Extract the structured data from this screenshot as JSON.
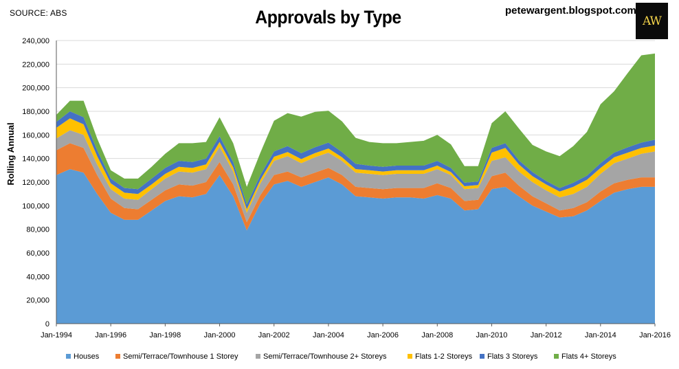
{
  "header": {
    "source": "SOURCE: ABS",
    "title": "Approvals by Type",
    "blog": "petewargent.blogspot.com",
    "logo_text": "AW"
  },
  "colors": {
    "Houses": "#5b9bd5",
    "Semi1": "#ed7d31",
    "Semi2": "#a5a5a5",
    "Flats12": "#ffc000",
    "Flats3": "#4472c4",
    "Flats4": "#70ad47"
  },
  "chart_data": {
    "type": "area",
    "stacked": true,
    "title": "Approvals by Type",
    "xlabel": "",
    "ylabel": "Rolling Annual",
    "ylim": [
      0,
      240000
    ],
    "yticks": [
      0,
      20000,
      40000,
      60000,
      80000,
      100000,
      120000,
      140000,
      160000,
      180000,
      200000,
      220000,
      240000
    ],
    "ytick_labels": [
      "0",
      "20,000",
      "40,000",
      "60,000",
      "80,000",
      "100,000",
      "120,000",
      "140,000",
      "160,000",
      "180,000",
      "200,000",
      "220,000",
      "240,000"
    ],
    "xtick_labels": [
      "Jan-1994",
      "Jan-1996",
      "Jan-1998",
      "Jan-2000",
      "Jan-2002",
      "Jan-2004",
      "Jan-2006",
      "Jan-2008",
      "Jan-2010",
      "Jan-2012",
      "Jan-2014",
      "Jan-2016"
    ],
    "x": [
      1994.0,
      1994.5,
      1995.0,
      1995.5,
      1996.0,
      1996.5,
      1997.0,
      1997.5,
      1998.0,
      1998.5,
      1999.0,
      1999.5,
      2000.0,
      2000.5,
      2001.0,
      2001.5,
      2002.0,
      2002.5,
      2003.0,
      2003.5,
      2004.0,
      2004.5,
      2005.0,
      2005.5,
      2006.0,
      2006.5,
      2007.0,
      2007.5,
      2008.0,
      2008.5,
      2009.0,
      2009.5,
      2010.0,
      2010.5,
      2011.0,
      2011.5,
      2012.0,
      2012.5,
      2013.0,
      2013.5,
      2014.0,
      2014.5,
      2015.0,
      2015.5,
      2016.0
    ],
    "series": [
      {
        "name": "Houses",
        "color": "#5b9bd5",
        "values": [
          126000,
          131000,
          128000,
          110000,
          94000,
          88000,
          88000,
          96000,
          104000,
          108000,
          107000,
          110000,
          126000,
          108000,
          79000,
          102000,
          118000,
          121000,
          116000,
          120000,
          124000,
          118000,
          108000,
          107000,
          106000,
          107000,
          107000,
          106000,
          109000,
          106000,
          96000,
          97000,
          114000,
          116000,
          108000,
          100000,
          95000,
          90000,
          91000,
          96000,
          104000,
          111000,
          114000,
          116000,
          116000
        ]
      },
      {
        "name": "Semi/Terrace/Townhouse 1 Storey",
        "color": "#ed7d31",
        "values": [
          21000,
          22000,
          21000,
          16000,
          12000,
          10000,
          9000,
          9000,
          9000,
          10000,
          10000,
          10000,
          11000,
          10000,
          7000,
          7000,
          8000,
          8000,
          8000,
          8000,
          8000,
          8000,
          8000,
          8000,
          8000,
          8000,
          8000,
          9000,
          10000,
          9000,
          8000,
          8000,
          11000,
          12000,
          9000,
          8000,
          7000,
          6000,
          7000,
          7000,
          8000,
          8000,
          8000,
          8000,
          8000
        ]
      },
      {
        "name": "Semi/Terrace/Townhouse 2+ Storeys",
        "color": "#a5a5a5",
        "values": [
          10000,
          11000,
          11000,
          9000,
          8000,
          8000,
          8000,
          9000,
          10000,
          11000,
          11000,
          11000,
          13000,
          11000,
          8000,
          10000,
          12000,
          13000,
          12000,
          13000,
          13000,
          12000,
          12000,
          12000,
          12000,
          12000,
          12000,
          12000,
          12000,
          11000,
          10000,
          10000,
          13000,
          13000,
          12000,
          12000,
          11000,
          11000,
          12000,
          13000,
          15000,
          17000,
          18000,
          20000,
          22000
        ]
      },
      {
        "name": "Flats 1-2 Storeys",
        "color": "#ffc000",
        "values": [
          9000,
          10000,
          9000,
          7000,
          5000,
          5000,
          5000,
          4000,
          4000,
          4000,
          4000,
          4000,
          4000,
          3500,
          3000,
          3000,
          3500,
          3500,
          3500,
          3500,
          3500,
          3000,
          3000,
          3000,
          3000,
          3000,
          3000,
          3000,
          3000,
          2500,
          2500,
          2500,
          7000,
          8000,
          6000,
          5000,
          5000,
          5000,
          6000,
          6000,
          5000,
          5000,
          5000,
          5000,
          5000
        ]
      },
      {
        "name": "Flats 3 Storeys",
        "color": "#4472c4",
        "values": [
          5000,
          6000,
          6000,
          5000,
          4000,
          4000,
          4000,
          5000,
          5000,
          5000,
          5000,
          5000,
          5000,
          4500,
          4000,
          4000,
          4500,
          5000,
          5000,
          5000,
          5000,
          4500,
          4500,
          4000,
          4000,
          4000,
          4000,
          4000,
          4000,
          3500,
          3000,
          3000,
          4000,
          4000,
          3500,
          3500,
          3000,
          3000,
          3500,
          3500,
          4000,
          4000,
          4500,
          4500,
          5000
        ]
      },
      {
        "name": "Flats 4+ Storeys",
        "color": "#70ad47",
        "values": [
          6000,
          9000,
          14000,
          10000,
          7000,
          8000,
          9000,
          10000,
          12000,
          15000,
          16000,
          14000,
          16000,
          16000,
          15000,
          19000,
          26000,
          28000,
          31000,
          30000,
          27000,
          26000,
          22000,
          20000,
          20000,
          19000,
          20000,
          21000,
          22000,
          20000,
          14000,
          13000,
          21000,
          27000,
          27000,
          23000,
          25000,
          27000,
          31000,
          37000,
          50000,
          52000,
          63000,
          74000,
          73000
        ]
      }
    ],
    "grid": true,
    "legend": "bottom"
  }
}
